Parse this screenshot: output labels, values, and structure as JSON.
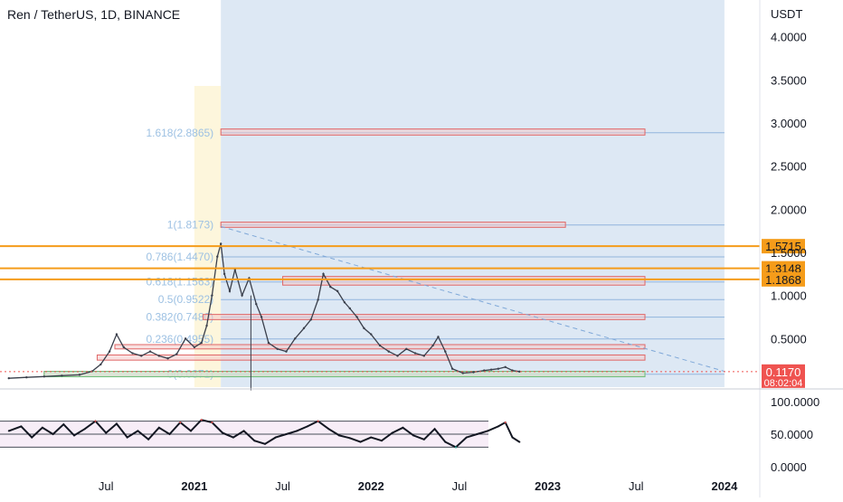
{
  "header": {
    "title": "Ren / TetherUS, 1D, BINANCE",
    "unit": "USDT"
  },
  "colors": {
    "background": "#ffffff",
    "forecast_zone": "#dbe7f3",
    "highlight_zone": "#fdf6dc",
    "fib_box_fill": "#f4c9c9",
    "fib_box_stroke": "#e06666",
    "fib_label": "#9dc1e3",
    "fib_line": "#7fa8d8",
    "orange_level": "#f59c1a",
    "price_line": "#3a3f4b",
    "current_price": "#ef5350",
    "rsi_line": "#131722",
    "rsi_band": "#f7edf7",
    "axis_text": "#131722"
  },
  "chart_data": [
    {
      "type": "line",
      "title": "Ren / TetherUS, 1D, BINANCE",
      "ylabel": "USDT",
      "ylim": [
        0.0,
        4.3
      ],
      "x_tick_labels": [
        "Jul",
        "2021",
        "Jul",
        "2022",
        "Jul",
        "2023",
        "Jul",
        "2024"
      ],
      "y_tick_labels": [
        "0.5000",
        "1.0000",
        "1.5000",
        "2.0000",
        "2.5000",
        "3.0000",
        "3.5000",
        "4.0000"
      ],
      "x_ticks": [
        {
          "label": "Jul",
          "year": 2020.5
        },
        {
          "label": "2021",
          "year": 2021.0
        },
        {
          "label": "Jul",
          "year": 2021.5
        },
        {
          "label": "2022",
          "year": 2022.0
        },
        {
          "label": "Jul",
          "year": 2022.5
        },
        {
          "label": "2023",
          "year": 2023.0
        },
        {
          "label": "Jul",
          "year": 2023.5
        },
        {
          "label": "2024",
          "year": 2024.0
        }
      ],
      "y_ticks": [
        0.5,
        1.0,
        1.5,
        2.0,
        2.5,
        3.0,
        3.5,
        4.0
      ],
      "fib_levels": [
        {
          "label": "1.618(2.8865)",
          "value": 2.8865
        },
        {
          "label": "1(1.8173)",
          "value": 1.8173
        },
        {
          "label": "0.786(1.4470)",
          "value": 1.447
        },
        {
          "label": "0.618(1.1563)",
          "value": 1.1563
        },
        {
          "label": "0.5(0.9522)",
          "value": 0.9522
        },
        {
          "label": "0.382(0.7480)",
          "value": 0.748
        },
        {
          "label": "0.236(0.4955)",
          "value": 0.4955
        },
        {
          "label": "0(0.0871)",
          "value": 0.0871
        }
      ],
      "horizontal_levels": [
        {
          "label": "1.5715",
          "value": 1.5715
        },
        {
          "label": "1.3148",
          "value": 1.3148
        },
        {
          "label": "1.1868",
          "value": 1.1868
        }
      ],
      "current_price": {
        "label": "0.1170",
        "value": 0.117,
        "countdown": "08:02:04"
      },
      "price_series": {
        "name": "",
        "points": [
          [
            2019.95,
            0.04
          ],
          [
            2020.05,
            0.05
          ],
          [
            2020.15,
            0.06
          ],
          [
            2020.25,
            0.07
          ],
          [
            2020.35,
            0.08
          ],
          [
            2020.42,
            0.12
          ],
          [
            2020.47,
            0.2
          ],
          [
            2020.52,
            0.35
          ],
          [
            2020.56,
            0.55
          ],
          [
            2020.6,
            0.4
          ],
          [
            2020.65,
            0.33
          ],
          [
            2020.7,
            0.3
          ],
          [
            2020.75,
            0.35
          ],
          [
            2020.8,
            0.3
          ],
          [
            2020.85,
            0.27
          ],
          [
            2020.9,
            0.32
          ],
          [
            2020.95,
            0.5
          ],
          [
            2021.0,
            0.4
          ],
          [
            2021.04,
            0.45
          ],
          [
            2021.07,
            0.65
          ],
          [
            2021.1,
            1.0
          ],
          [
            2021.13,
            1.45
          ],
          [
            2021.15,
            1.6
          ],
          [
            2021.17,
            1.25
          ],
          [
            2021.2,
            1.05
          ],
          [
            2021.23,
            1.3
          ],
          [
            2021.27,
            1.0
          ],
          [
            2021.31,
            1.2
          ],
          [
            2021.35,
            0.9
          ],
          [
            2021.38,
            0.75
          ],
          [
            2021.42,
            0.45
          ],
          [
            2021.47,
            0.38
          ],
          [
            2021.52,
            0.35
          ],
          [
            2021.57,
            0.5
          ],
          [
            2021.62,
            0.62
          ],
          [
            2021.66,
            0.72
          ],
          [
            2021.7,
            0.95
          ],
          [
            2021.73,
            1.25
          ],
          [
            2021.77,
            1.1
          ],
          [
            2021.81,
            1.05
          ],
          [
            2021.85,
            0.92
          ],
          [
            2021.88,
            0.85
          ],
          [
            2021.92,
            0.75
          ],
          [
            2021.96,
            0.62
          ],
          [
            2022.0,
            0.55
          ],
          [
            2022.05,
            0.42
          ],
          [
            2022.1,
            0.35
          ],
          [
            2022.15,
            0.3
          ],
          [
            2022.2,
            0.38
          ],
          [
            2022.25,
            0.33
          ],
          [
            2022.3,
            0.3
          ],
          [
            2022.35,
            0.42
          ],
          [
            2022.38,
            0.52
          ],
          [
            2022.42,
            0.35
          ],
          [
            2022.46,
            0.15
          ],
          [
            2022.52,
            0.1
          ],
          [
            2022.58,
            0.11
          ],
          [
            2022.64,
            0.13
          ],
          [
            2022.68,
            0.14
          ],
          [
            2022.72,
            0.15
          ],
          [
            2022.76,
            0.17
          ],
          [
            2022.8,
            0.13
          ],
          [
            2022.84,
            0.117
          ]
        ]
      },
      "rsi_panel": {
        "ylim": [
          0,
          100
        ],
        "y_tick_labels": [
          "0.0000",
          "50.0000",
          "100.0000"
        ],
        "y_ticks": [
          0,
          50,
          100
        ],
        "levels": [
          30,
          50,
          70
        ],
        "points": [
          [
            2019.95,
            55
          ],
          [
            2020.02,
            62
          ],
          [
            2020.08,
            45
          ],
          [
            2020.14,
            60
          ],
          [
            2020.2,
            50
          ],
          [
            2020.26,
            65
          ],
          [
            2020.32,
            48
          ],
          [
            2020.38,
            58
          ],
          [
            2020.44,
            70
          ],
          [
            2020.5,
            52
          ],
          [
            2020.56,
            66
          ],
          [
            2020.62,
            45
          ],
          [
            2020.68,
            55
          ],
          [
            2020.74,
            42
          ],
          [
            2020.8,
            60
          ],
          [
            2020.86,
            50
          ],
          [
            2020.92,
            68
          ],
          [
            2020.98,
            55
          ],
          [
            2021.04,
            72
          ],
          [
            2021.1,
            68
          ],
          [
            2021.16,
            52
          ],
          [
            2021.22,
            45
          ],
          [
            2021.28,
            55
          ],
          [
            2021.34,
            40
          ],
          [
            2021.4,
            35
          ],
          [
            2021.46,
            45
          ],
          [
            2021.52,
            50
          ],
          [
            2021.58,
            55
          ],
          [
            2021.64,
            62
          ],
          [
            2021.7,
            70
          ],
          [
            2021.76,
            58
          ],
          [
            2021.82,
            48
          ],
          [
            2021.88,
            44
          ],
          [
            2021.94,
            38
          ],
          [
            2022.0,
            45
          ],
          [
            2022.06,
            40
          ],
          [
            2022.12,
            52
          ],
          [
            2022.18,
            60
          ],
          [
            2022.24,
            48
          ],
          [
            2022.3,
            42
          ],
          [
            2022.36,
            58
          ],
          [
            2022.42,
            38
          ],
          [
            2022.48,
            30
          ],
          [
            2022.54,
            45
          ],
          [
            2022.6,
            50
          ],
          [
            2022.66,
            55
          ],
          [
            2022.72,
            62
          ],
          [
            2022.76,
            68
          ],
          [
            2022.8,
            45
          ],
          [
            2022.84,
            38
          ]
        ]
      }
    }
  ]
}
